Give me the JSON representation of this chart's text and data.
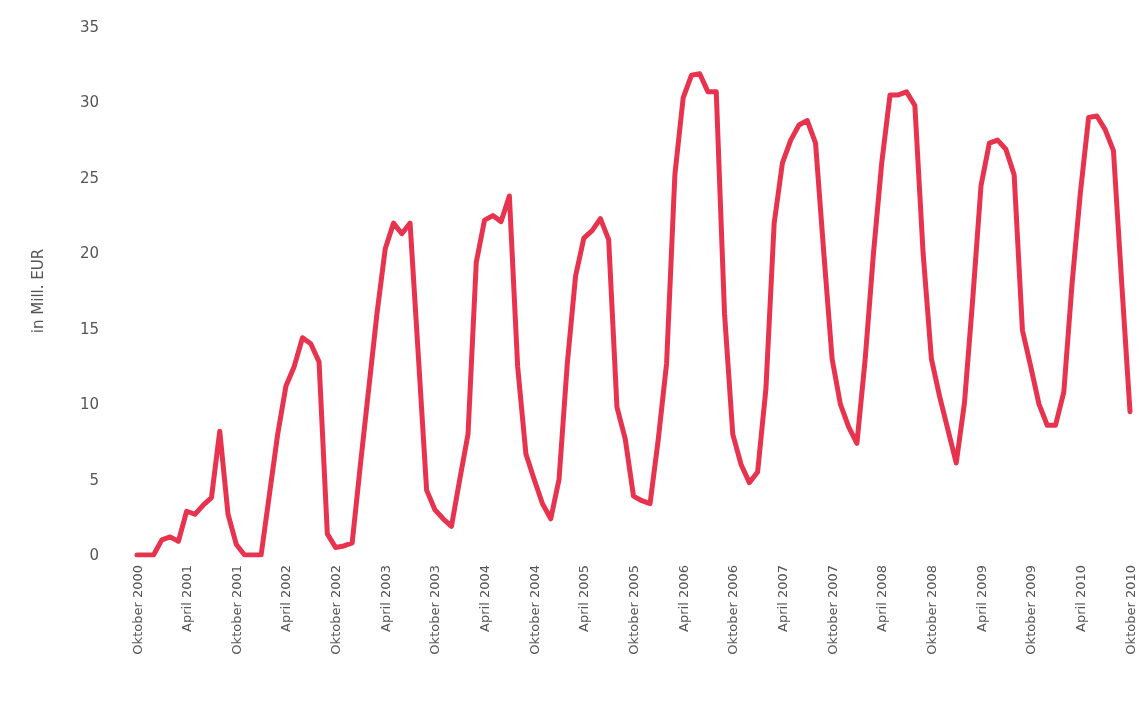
{
  "chart_data": {
    "type": "line",
    "ylabel": "in Mill. EUR",
    "categories": [
      "Oktober 2000",
      null,
      null,
      null,
      null,
      null,
      "April 2001",
      null,
      null,
      null,
      null,
      null,
      "Oktober 2001",
      null,
      null,
      null,
      null,
      null,
      "April 2002",
      null,
      null,
      null,
      null,
      null,
      "Oktober 2002",
      null,
      null,
      null,
      null,
      null,
      "April 2003",
      null,
      null,
      null,
      null,
      null,
      "Oktober 2003",
      null,
      null,
      null,
      null,
      null,
      "April 2004",
      null,
      null,
      null,
      null,
      null,
      "Oktober 2004",
      null,
      null,
      null,
      null,
      null,
      "April 2005",
      null,
      null,
      null,
      null,
      null,
      "Oktober 2005",
      null,
      null,
      null,
      null,
      null,
      "April 2006",
      null,
      null,
      null,
      null,
      null,
      "Oktober 2006",
      null,
      null,
      null,
      null,
      null,
      "April 2007",
      null,
      null,
      null,
      null,
      null,
      "Oktober 2007",
      null,
      null,
      null,
      null,
      null,
      "April 2008",
      null,
      null,
      null,
      null,
      null,
      "Oktober 2008",
      null,
      null,
      null,
      null,
      null,
      "April 2009",
      null,
      null,
      null,
      null,
      null,
      "Oktober 2009",
      null,
      null,
      null,
      null,
      null,
      "April 2010",
      null,
      null,
      null,
      null,
      null,
      "Oktober 2010"
    ],
    "series": [
      {
        "color": "#e8334f",
        "values": [
          0,
          0,
          0,
          1.0,
          1.2,
          0.9,
          2.9,
          2.7,
          3.3,
          3.8,
          8.2,
          2.7,
          0.7,
          0,
          0,
          0,
          4,
          8,
          11.2,
          12.5,
          14.4,
          14.0,
          12.8,
          1.4,
          0.5,
          0.6,
          0.8,
          6,
          11,
          16,
          20.3,
          22,
          21.3,
          22,
          13.2,
          4.3,
          3.0,
          2.4,
          1.9,
          5,
          8,
          19.4,
          22.2,
          22.5,
          22.1,
          23.8,
          12.5,
          6.7,
          5,
          3.4,
          2.4,
          5,
          12.7,
          18.5,
          21,
          21.5,
          22.3,
          20.9,
          9.8,
          7.7,
          3.9,
          3.6,
          3.4,
          7.7,
          12.7,
          25.2,
          30.3,
          31.8,
          31.9,
          30.7,
          30.7,
          16,
          8,
          6,
          4.8,
          5.5,
          11,
          22,
          26,
          27.5,
          28.5,
          28.8,
          27.3,
          20,
          13,
          10,
          8.5,
          7.4,
          13,
          20,
          26,
          30.5,
          30.5,
          30.7,
          29.8,
          20,
          13,
          10.5,
          8.3,
          6.1,
          10.1,
          17,
          24.5,
          27.3,
          27.5,
          26.9,
          25.2,
          14.9,
          12.5,
          10,
          8.6,
          8.6,
          10.8,
          18,
          24,
          29.0,
          29.1,
          28.2,
          26.8,
          18,
          9.5
        ]
      }
    ],
    "ylim": [
      0,
      35
    ],
    "yticks": [
      0,
      5,
      10,
      15,
      20,
      25,
      30,
      35
    ],
    "grid": false,
    "marker": "none",
    "line_style": "solid"
  }
}
